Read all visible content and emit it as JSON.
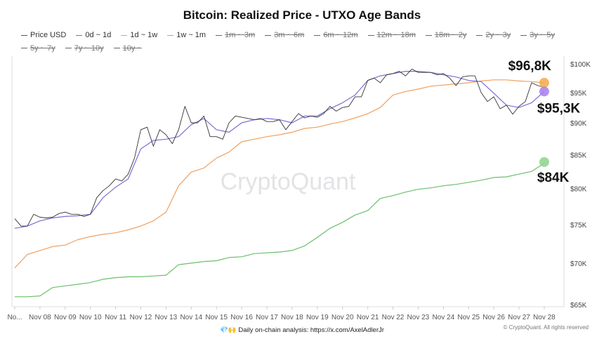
{
  "chart_data": {
    "type": "line",
    "title": "Bitcoin: Realized Price - UTXO Age Bands",
    "y_scale": "log",
    "ylim": [
      65,
      100
    ],
    "y_unit": "$K",
    "y_ticks": [
      "$100K",
      "$95K",
      "$90K",
      "$85K",
      "$80K",
      "$75K",
      "$70K",
      "$65K"
    ],
    "y_tick_values": [
      100,
      95,
      90,
      85,
      80,
      75,
      70,
      65
    ],
    "x_ticks": [
      "No...",
      "Nov 08",
      "Nov 09",
      "Nov 10",
      "Nov 11",
      "Nov 12",
      "Nov 13",
      "Nov 14",
      "Nov 15",
      "Nov 16",
      "Nov 17",
      "Nov 18",
      "Nov 19",
      "Nov 20",
      "Nov 21",
      "Nov 22",
      "Nov 23",
      "Nov 24",
      "Nov 25",
      "Nov 26",
      "Nov 27",
      "Nov 28"
    ],
    "x_tick_dates": [
      "Nov 07",
      "Nov 08",
      "Nov 09",
      "Nov 10",
      "Nov 11",
      "Nov 12",
      "Nov 13",
      "Nov 14",
      "Nov 15",
      "Nov 16",
      "Nov 17",
      "Nov 18",
      "Nov 19",
      "Nov 20",
      "Nov 21",
      "Nov 22",
      "Nov 23",
      "Nov 24",
      "Nov 25",
      "Nov 26",
      "Nov 27",
      "Nov 28"
    ],
    "grid": false,
    "legend_position": "top",
    "legend": [
      {
        "label": "Price USD",
        "color": "#555555",
        "active": true
      },
      {
        "label": "0d ~ 1d",
        "color": "#7b6fd6",
        "active": true
      },
      {
        "label": "1d ~ 1w",
        "color": "#f0a060",
        "active": true
      },
      {
        "label": "1w ~ 1m",
        "color": "#7cc47c",
        "active": true
      },
      {
        "label": "1m ~ 3m",
        "color": "#666666",
        "active": false
      },
      {
        "label": "3m ~ 6m",
        "color": "#666666",
        "active": false
      },
      {
        "label": "6m ~ 12m",
        "color": "#666666",
        "active": false
      },
      {
        "label": "12m ~ 18m",
        "color": "#666666",
        "active": false
      },
      {
        "label": "18m ~ 2y",
        "color": "#666666",
        "active": false
      },
      {
        "label": "2y ~ 3y",
        "color": "#666666",
        "active": false
      },
      {
        "label": "3y ~ 5y",
        "color": "#666666",
        "active": false
      },
      {
        "label": "5y ~ 7y",
        "color": "#666666",
        "active": false
      },
      {
        "label": "7y ~ 10y",
        "color": "#666666",
        "active": false
      },
      {
        "label": "10y ~",
        "color": "#666666",
        "active": false
      }
    ],
    "x": [
      "Nov 07 00:00",
      "Nov 07 12:00",
      "Nov 08 00:00",
      "Nov 08 12:00",
      "Nov 09 00:00",
      "Nov 09 12:00",
      "Nov 10 00:00",
      "Nov 10 12:00",
      "Nov 11 00:00",
      "Nov 11 12:00",
      "Nov 12 00:00",
      "Nov 12 12:00",
      "Nov 13 00:00",
      "Nov 13 12:00",
      "Nov 14 00:00",
      "Nov 14 12:00",
      "Nov 15 00:00",
      "Nov 15 12:00",
      "Nov 16 00:00",
      "Nov 16 12:00",
      "Nov 17 00:00",
      "Nov 17 12:00",
      "Nov 18 00:00",
      "Nov 18 12:00",
      "Nov 19 00:00",
      "Nov 19 12:00",
      "Nov 20 00:00",
      "Nov 20 12:00",
      "Nov 21 00:00",
      "Nov 21 12:00",
      "Nov 22 00:00",
      "Nov 22 12:00",
      "Nov 23 00:00",
      "Nov 23 12:00",
      "Nov 24 00:00",
      "Nov 24 12:00",
      "Nov 25 00:00",
      "Nov 25 12:00",
      "Nov 26 00:00",
      "Nov 26 12:00",
      "Nov 27 00:00",
      "Nov 27 12:00",
      "Nov 28 00:00"
    ],
    "series": [
      {
        "name": "Price USD",
        "color": "#333333",
        "width": 0.9,
        "x": [
          "Nov 07 00:00",
          "Nov 07 06:00",
          "Nov 07 12:00",
          "Nov 07 18:00",
          "Nov 08 00:00",
          "Nov 08 06:00",
          "Nov 08 12:00",
          "Nov 08 18:00",
          "Nov 09 00:00",
          "Nov 09 06:00",
          "Nov 09 12:00",
          "Nov 09 18:00",
          "Nov 10 00:00",
          "Nov 10 06:00",
          "Nov 10 12:00",
          "Nov 10 18:00",
          "Nov 11 00:00",
          "Nov 11 06:00",
          "Nov 11 12:00",
          "Nov 11 18:00",
          "Nov 12 00:00",
          "Nov 12 06:00",
          "Nov 12 12:00",
          "Nov 12 18:00",
          "Nov 13 00:00",
          "Nov 13 06:00",
          "Nov 13 12:00",
          "Nov 13 18:00",
          "Nov 14 00:00",
          "Nov 14 06:00",
          "Nov 14 12:00",
          "Nov 14 18:00",
          "Nov 15 00:00",
          "Nov 15 06:00",
          "Nov 15 12:00",
          "Nov 15 18:00",
          "Nov 16 00:00",
          "Nov 16 06:00",
          "Nov 16 12:00",
          "Nov 16 18:00",
          "Nov 17 00:00",
          "Nov 17 06:00",
          "Nov 17 12:00",
          "Nov 17 18:00",
          "Nov 18 00:00",
          "Nov 18 06:00",
          "Nov 18 12:00",
          "Nov 18 18:00",
          "Nov 19 00:00",
          "Nov 19 06:00",
          "Nov 19 12:00",
          "Nov 19 18:00",
          "Nov 20 00:00",
          "Nov 20 06:00",
          "Nov 20 12:00",
          "Nov 20 18:00",
          "Nov 21 00:00",
          "Nov 21 06:00",
          "Nov 21 12:00",
          "Nov 21 18:00",
          "Nov 22 00:00",
          "Nov 22 06:00",
          "Nov 22 12:00",
          "Nov 22 18:00",
          "Nov 23 00:00",
          "Nov 23 06:00",
          "Nov 23 12:00",
          "Nov 23 18:00",
          "Nov 24 00:00",
          "Nov 24 06:00",
          "Nov 24 12:00",
          "Nov 24 18:00",
          "Nov 25 00:00",
          "Nov 25 06:00",
          "Nov 25 12:00",
          "Nov 25 18:00",
          "Nov 26 00:00",
          "Nov 26 06:00",
          "Nov 26 12:00",
          "Nov 26 18:00",
          "Nov 27 00:00",
          "Nov 27 06:00",
          "Nov 27 12:00",
          "Nov 27 18:00",
          "Nov 28 00:00"
        ],
        "values": [
          75.9,
          74.9,
          74.9,
          76.5,
          76.1,
          76.0,
          76.1,
          76.6,
          76.8,
          76.5,
          76.5,
          76.2,
          76.5,
          78.8,
          79.8,
          80.5,
          81.5,
          81.2,
          82.2,
          84.6,
          89.0,
          89.4,
          86.4,
          89.0,
          88.2,
          86.8,
          89.0,
          92.8,
          90.1,
          90.1,
          91.2,
          87.9,
          87.9,
          87.5,
          90.1,
          91.2,
          91.0,
          90.8,
          90.6,
          90.8,
          90.3,
          90.3,
          90.6,
          89.0,
          90.3,
          91.6,
          90.9,
          91.2,
          91.0,
          91.6,
          92.8,
          92.0,
          92.6,
          92.8,
          94.4,
          94.4,
          97.2,
          97.6,
          96.8,
          98.2,
          98.4,
          98.8,
          98.0,
          99.2,
          98.6,
          98.6,
          98.6,
          98.2,
          98.4,
          97.6,
          96.3,
          97.8,
          98.0,
          98.0,
          95.1,
          93.6,
          94.4,
          92.4,
          93.0,
          91.5,
          92.8,
          93.6,
          96.8,
          96.3,
          96.0
        ]
      },
      {
        "name": "0d ~ 1d",
        "color": "#7b6fd6",
        "width": 1.2,
        "values": [
          74.6,
          74.9,
          75.6,
          76.0,
          76.2,
          76.3,
          76.5,
          78.8,
          80.3,
          81.5,
          86.0,
          87.3,
          87.5,
          87.9,
          89.8,
          90.8,
          89.0,
          88.6,
          90.1,
          90.6,
          90.8,
          90.6,
          90.1,
          91.2,
          91.2,
          92.4,
          93.4,
          94.7,
          97.2,
          98.0,
          98.4,
          98.8,
          98.8,
          98.6,
          98.2,
          97.8,
          97.2,
          97.0,
          95.0,
          93.0,
          92.6,
          93.4,
          95.3
        ]
      },
      {
        "name": "1d ~ 1w",
        "color": "#f0a060",
        "width": 1.2,
        "values": [
          69.5,
          71.2,
          71.7,
          72.2,
          72.4,
          73.1,
          73.5,
          73.8,
          74.0,
          74.4,
          74.9,
          75.6,
          76.8,
          80.5,
          82.5,
          83.1,
          84.6,
          85.5,
          87.1,
          87.5,
          87.9,
          88.2,
          88.6,
          89.2,
          89.4,
          89.9,
          90.3,
          90.9,
          91.6,
          92.6,
          94.7,
          95.3,
          95.7,
          96.2,
          96.4,
          96.6,
          96.8,
          97.1,
          97.3,
          97.3,
          97.1,
          97.0,
          96.8
        ]
      },
      {
        "name": "1w ~ 1m",
        "color": "#6cbf6c",
        "width": 1.2,
        "values": [
          66.0,
          66.0,
          66.1,
          67.1,
          67.3,
          67.5,
          67.7,
          68.1,
          68.3,
          68.4,
          68.4,
          68.5,
          68.6,
          69.9,
          70.1,
          70.3,
          70.4,
          70.8,
          70.9,
          71.3,
          71.4,
          71.5,
          71.7,
          72.3,
          73.4,
          74.6,
          75.4,
          76.4,
          77.0,
          78.7,
          79.1,
          79.6,
          80.0,
          80.2,
          80.5,
          80.7,
          81.0,
          81.3,
          81.7,
          81.8,
          82.2,
          82.6,
          83.8
        ]
      }
    ],
    "annotations": [
      {
        "text": "$96,8K",
        "value": 96.8,
        "series": "1d ~ 1w",
        "color": "#f5a94a"
      },
      {
        "text": "$95,3K",
        "value": 95.3,
        "series": "0d ~ 1d",
        "color": "#a77cf0"
      },
      {
        "text": "$84K",
        "value": 84,
        "series": "1w ~ 1m",
        "color": "#8dd48d"
      }
    ]
  },
  "watermark": "CryptoQuant",
  "footer": {
    "emoji": "💎🙌",
    "text": "Daily on-chain analysis: https://x.com/AxelAdlerJr",
    "copyright": "© CryptoQuant. All rights reserved"
  }
}
